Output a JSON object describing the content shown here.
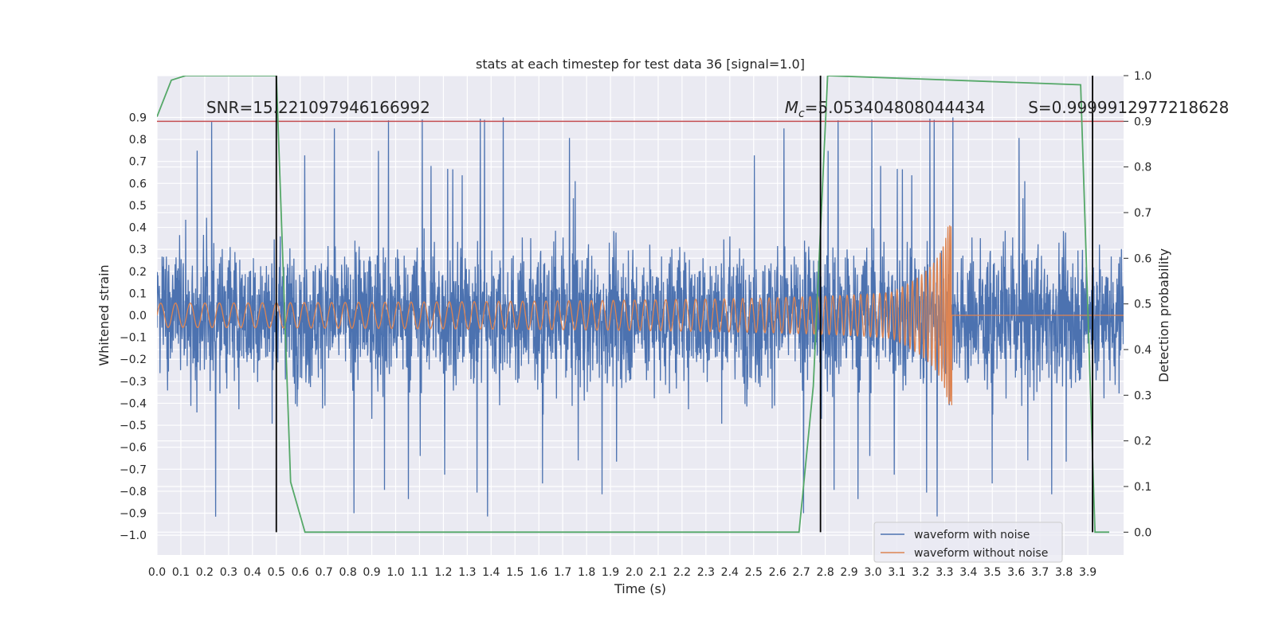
{
  "chart_data": {
    "type": "line",
    "title": "stats at each timestep for test data 36 [signal=1.0]",
    "xlabel": "Time (s)",
    "ylabel": "Whitened strain",
    "y2label": "Detection probability",
    "xlim": [
      0.0,
      4.05
    ],
    "ylim": [
      -1.09,
      1.09
    ],
    "y2lim": [
      -0.05,
      1.0
    ],
    "x_ticks": [
      0.0,
      0.1,
      0.2,
      0.3,
      0.4,
      0.5,
      0.6,
      0.7,
      0.8,
      0.9,
      1.0,
      1.1,
      1.2,
      1.3,
      1.4,
      1.5,
      1.6,
      1.7,
      1.8,
      1.9,
      2.0,
      2.1,
      2.2,
      2.3,
      2.4,
      2.5,
      2.6,
      2.7,
      2.8,
      2.9,
      3.0,
      3.1,
      3.2,
      3.3,
      3.4,
      3.5,
      3.6,
      3.7,
      3.8,
      3.9
    ],
    "x_tick_labels": [
      "0.0",
      "0.1",
      "0.2",
      "0.3",
      "0.4",
      "0.5",
      "0.6",
      "0.7",
      "0.8",
      "0.9",
      "1.0",
      "1.1",
      "1.2",
      "1.3",
      "1.4",
      "1.5",
      "1.6",
      "1.7",
      "1.8",
      "1.9",
      "2.0",
      "2.1",
      "2.2",
      "2.3",
      "2.4",
      "2.5",
      "2.6",
      "2.7",
      "2.8",
      "2.9",
      "3.0",
      "3.1",
      "3.2",
      "3.3",
      "3.4",
      "3.5",
      "3.6",
      "3.7",
      "3.8",
      "3.9"
    ],
    "y_ticks": [
      0.9,
      0.8,
      0.7,
      0.6,
      0.5,
      0.4,
      0.3,
      0.2,
      0.1,
      0.0,
      -0.1,
      -0.2,
      -0.3,
      -0.4,
      -0.5,
      -0.6,
      -0.7,
      -0.8,
      -0.9,
      -1.0
    ],
    "y_tick_labels": [
      "0.9",
      "0.8",
      "0.7",
      "0.6",
      "0.5",
      "0.4",
      "0.3",
      "0.2",
      "0.1",
      "0.0",
      "−0.1",
      "−0.2",
      "−0.3",
      "−0.4",
      "−0.5",
      "−0.6",
      "−0.7",
      "−0.8",
      "−0.9",
      "−1.0"
    ],
    "y2_ticks": [
      1.0,
      0.9,
      0.8,
      0.7,
      0.6,
      0.5,
      0.4,
      0.3,
      0.2,
      0.1,
      0.0
    ],
    "y2_tick_labels": [
      "1.0",
      "0.9",
      "0.8",
      "0.7",
      "0.6",
      "0.5",
      "0.4",
      "0.3",
      "0.2",
      "0.1",
      "0.0"
    ],
    "series": [
      {
        "name": "waveform with noise",
        "color": "#4c72b0",
        "kind": "noise",
        "x_start": 0.0,
        "x_end": 4.05,
        "typical_amplitude": [
          -0.45,
          0.5
        ],
        "peak_amplitude": [
          -1.0,
          0.9
        ]
      },
      {
        "name": "waveform without noise",
        "color": "#dd8452",
        "kind": "chirp",
        "x_start": 0.0,
        "merger_time": 3.33,
        "x_end": 4.05,
        "start_amplitude": 0.055,
        "peak_amplitude": [
          -0.36,
          0.41
        ]
      },
      {
        "name": "detection probability",
        "color": "#55a868",
        "axis": "right",
        "x": [
          0.0,
          0.06,
          0.12,
          0.5,
          0.56,
          0.62,
          2.69,
          2.75,
          2.81,
          3.87,
          3.93,
          3.99
        ],
        "y": [
          0.91,
          0.99,
          1.0,
          1.0,
          0.11,
          0.0,
          0.0,
          0.32,
          1.0,
          0.98,
          0.0,
          0.0
        ]
      }
    ],
    "threshold": {
      "value": 0.9,
      "axis": "right",
      "color": "#c44e52"
    },
    "vertical_lines": [
      0.5,
      2.78,
      3.92
    ],
    "annotations": [
      {
        "id": "snr",
        "text": "SNR=15.221097946166992",
        "x": 0.2,
        "y": 0.92
      },
      {
        "id": "mc",
        "prefix": "M",
        "subscript": "c",
        "text": "=5.053404808044434",
        "x": 2.63,
        "y": 0.92
      },
      {
        "id": "s",
        "text": "S=0.9999912977218628",
        "x": 3.65,
        "y": 0.92
      }
    ],
    "legend": {
      "position": "bottom-right",
      "entries": [
        "waveform with noise",
        "waveform without noise"
      ]
    }
  }
}
